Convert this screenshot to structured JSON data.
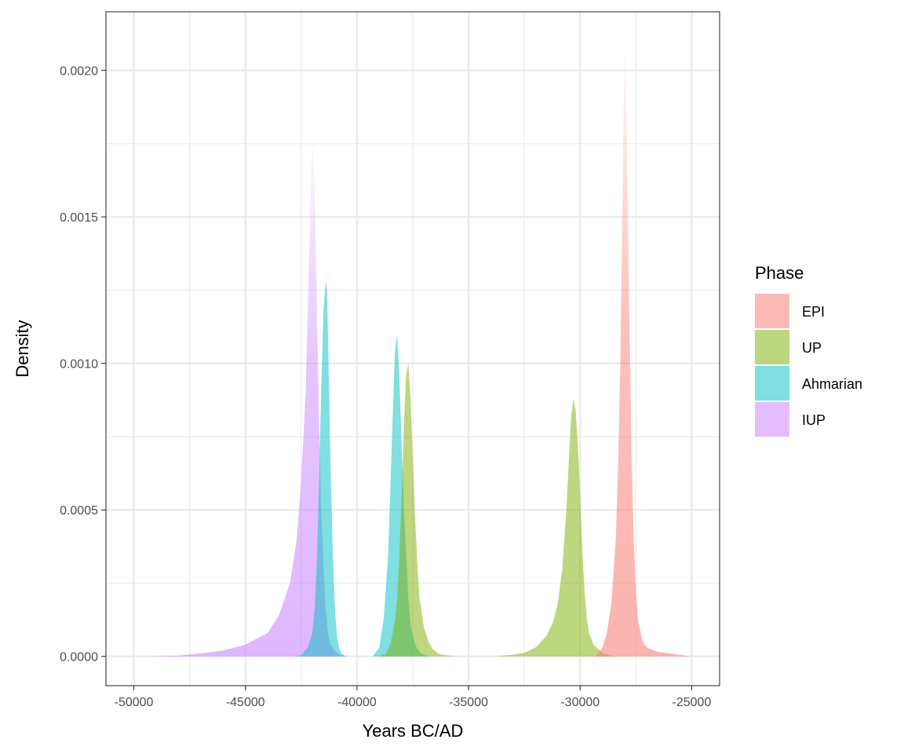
{
  "chart_data": {
    "type": "area",
    "title": "",
    "xlabel": "Years BC/AD",
    "ylabel": "Density",
    "xlim": [
      -51250,
      -23750
    ],
    "ylim": [
      -0.0001,
      0.0022
    ],
    "grid": true,
    "legend_position": "right",
    "x_ticks": [
      -50000,
      -45000,
      -40000,
      -35000,
      -30000,
      -25000
    ],
    "x_tick_labels": [
      "-50000",
      "-45000",
      "-40000",
      "-35000",
      "-30000",
      "-25000"
    ],
    "y_ticks": [
      0.0,
      0.0005,
      0.001,
      0.0015,
      0.002
    ],
    "y_tick_labels": [
      "0.0000",
      "0.0005",
      "0.0010",
      "0.0015",
      "0.0020"
    ],
    "legend": {
      "title": "Phase",
      "entries": [
        {
          "name": "EPI",
          "color": "#F8766D"
        },
        {
          "name": "UP",
          "color": "#7CAE00"
        },
        {
          "name": "Ahmarian",
          "color": "#00BFC4"
        },
        {
          "name": "IUP",
          "color": "#C77CFF"
        }
      ]
    },
    "series": [
      {
        "name": "IUP",
        "color": "#C77CFF",
        "style": "faded",
        "x": [
          -49500,
          -48000,
          -47000,
          -46000,
          -45000,
          -44000,
          -43500,
          -43000,
          -42700,
          -42500,
          -42300,
          -42200,
          -42100,
          -42000,
          -41900,
          -41800,
          -41700,
          -41600,
          -41500,
          -41400,
          -41300,
          -41200,
          -41000,
          -40800,
          -40500
        ],
        "y": [
          0.0,
          3e-06,
          1e-05,
          2e-05,
          4e-05,
          8e-05,
          0.00014,
          0.00025,
          0.0004,
          0.0006,
          0.0009,
          0.0012,
          0.0015,
          0.00178,
          0.0016,
          0.0012,
          0.0008,
          0.0005,
          0.0003,
          0.00016,
          8e-05,
          4e-05,
          2e-05,
          5e-06,
          0.0
        ]
      },
      {
        "name": "Ahmarian",
        "color": "#00BFC4",
        "style": "solid",
        "x": [
          -42800,
          -42500,
          -42200,
          -42000,
          -41900,
          -41800,
          -41700,
          -41600,
          -41500,
          -41400,
          -41350,
          -41300,
          -41250,
          -41200,
          -41100,
          -41000,
          -40900,
          -40800,
          -40700,
          -40500
        ],
        "y": [
          0.0,
          5e-06,
          3e-05,
          8e-05,
          0.00016,
          0.00032,
          0.0006,
          0.00092,
          0.00118,
          0.00128,
          0.00126,
          0.0011,
          0.0009,
          0.0007,
          0.0004,
          0.00018,
          7e-05,
          3e-05,
          1e-05,
          0.0
        ]
      },
      {
        "name": "Ahmarian",
        "color": "#00BFC4",
        "style": "solid",
        "x": [
          -39300,
          -39000,
          -38800,
          -38600,
          -38500,
          -38400,
          -38300,
          -38200,
          -38100,
          -38000,
          -37900,
          -37800,
          -37700,
          -37600,
          -37400,
          -37200,
          -37000,
          -36800
        ],
        "y": [
          0.0,
          3e-05,
          0.00013,
          0.00035,
          0.00058,
          0.00082,
          0.00104,
          0.0011,
          0.00095,
          0.00072,
          0.00052,
          0.00035,
          0.0002,
          0.00011,
          4e-05,
          1.5e-05,
          5e-06,
          0.0
        ]
      },
      {
        "name": "UP",
        "color": "#7CAE00",
        "style": "solid",
        "x": [
          -39000,
          -38700,
          -38500,
          -38300,
          -38200,
          -38100,
          -38000,
          -37900,
          -37800,
          -37700,
          -37600,
          -37500,
          -37400,
          -37300,
          -37200,
          -37000,
          -36800,
          -36600,
          -36400,
          -36200,
          -35800,
          -35500
        ],
        "y": [
          0.0,
          1e-05,
          4e-05,
          0.00012,
          0.0002,
          0.00034,
          0.00054,
          0.00078,
          0.00096,
          0.001,
          0.00088,
          0.00068,
          0.00048,
          0.00032,
          0.0002,
          0.0001,
          5e-05,
          2.5e-05,
          1.2e-05,
          6e-06,
          2e-06,
          0.0
        ]
      },
      {
        "name": "UP",
        "color": "#7CAE00",
        "style": "solid",
        "x": [
          -33800,
          -33000,
          -32500,
          -32000,
          -31500,
          -31200,
          -31000,
          -30800,
          -30600,
          -30500,
          -30400,
          -30300,
          -30200,
          -30100,
          -30000,
          -29900,
          -29800,
          -29700,
          -29600,
          -29400,
          -29200,
          -29000,
          -28700,
          -28400
        ],
        "y": [
          0.0,
          6e-06,
          1.2e-05,
          3e-05,
          7e-05,
          0.00012,
          0.00018,
          0.0003,
          0.00052,
          0.00068,
          0.00082,
          0.00088,
          0.00084,
          0.00072,
          0.00055,
          0.00036,
          0.00022,
          0.00013,
          8e-05,
          4e-05,
          2.5e-05,
          1.2e-05,
          4e-06,
          0.0
        ]
      },
      {
        "name": "EPI",
        "color": "#F8766D",
        "style": "faded",
        "x": [
          -29300,
          -29000,
          -28800,
          -28600,
          -28400,
          -28300,
          -28200,
          -28100,
          -28050,
          -28000,
          -27950,
          -27900,
          -27800,
          -27700,
          -27600,
          -27500,
          -27400,
          -27200,
          -27000,
          -26500,
          -26000,
          -25500,
          -25000
        ],
        "y": [
          0.0,
          3e-05,
          8e-05,
          0.00018,
          0.0004,
          0.00065,
          0.001,
          0.00155,
          0.00185,
          0.0021,
          0.00195,
          0.0017,
          0.0012,
          0.0007,
          0.0004,
          0.00022,
          0.00012,
          5e-05,
          3e-05,
          1.5e-05,
          1e-05,
          5e-06,
          0.0
        ]
      }
    ]
  }
}
